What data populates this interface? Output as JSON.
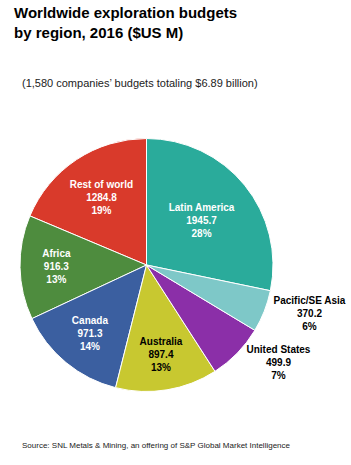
{
  "chart_data": {
    "type": "pie",
    "title": "Worldwide exploration budgets\nby region, 2016 ($US M)",
    "subtitle": "(1,580 companies’ budgets totaling $6.89 billion)",
    "source": "Source: SNL Metals & Mining, an offering of S&P Global Market Intelligence",
    "categories": [
      "Latin America",
      "Rest of world",
      "Africa",
      "Canada",
      "Australia",
      "United States",
      "Pacific/SE Asia"
    ],
    "values": [
      1945.7,
      1284.8,
      916.3,
      971.3,
      897.4,
      499.9,
      370.2
    ],
    "value_labels": [
      "1945.7\n28%",
      "1284.8\n19%",
      "916.3\n13%",
      "971.3\n14%",
      "897.4\n13%",
      "499.9\n7%",
      "370.2\n6%"
    ],
    "colors": [
      "#2aab9b",
      "#d93a2b",
      "#4e8c3e",
      "#3b5fa0",
      "#c8c830",
      "#8b2fa8",
      "#7ec8c8"
    ],
    "data_labels": true
  }
}
